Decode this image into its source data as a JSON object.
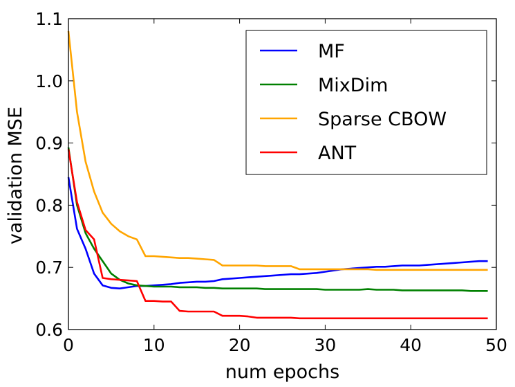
{
  "chart_data": {
    "type": "line",
    "title": "",
    "xlabel": "num epochs",
    "ylabel": "validation MSE",
    "xlim": [
      0,
      50
    ],
    "ylim": [
      0.6,
      1.1
    ],
    "xticks": [
      "0",
      "10",
      "20",
      "30",
      "40",
      "50"
    ],
    "yticks": [
      "0.6",
      "0.7",
      "0.8",
      "0.9",
      "1.0",
      "1.1"
    ],
    "grid": false,
    "legend_position": "top-right",
    "x": [
      0,
      1,
      2,
      3,
      4,
      5,
      6,
      7,
      8,
      9,
      10,
      11,
      12,
      13,
      14,
      15,
      16,
      17,
      18,
      19,
      20,
      21,
      22,
      23,
      24,
      25,
      26,
      27,
      28,
      29,
      30,
      31,
      32,
      33,
      34,
      35,
      36,
      37,
      38,
      39,
      40,
      41,
      42,
      43,
      44,
      45,
      46,
      47,
      48,
      49
    ],
    "series": [
      {
        "name": "MF",
        "color": "#0000ff",
        "values": [
          0.845,
          0.762,
          0.73,
          0.69,
          0.671,
          0.667,
          0.666,
          0.668,
          0.67,
          0.67,
          0.671,
          0.672,
          0.673,
          0.675,
          0.676,
          0.677,
          0.677,
          0.678,
          0.681,
          0.682,
          0.683,
          0.684,
          0.685,
          0.686,
          0.687,
          0.688,
          0.689,
          0.689,
          0.69,
          0.691,
          0.693,
          0.695,
          0.697,
          0.698,
          0.699,
          0.7,
          0.701,
          0.701,
          0.702,
          0.703,
          0.703,
          0.703,
          0.704,
          0.705,
          0.706,
          0.707,
          0.708,
          0.709,
          0.71,
          0.71
        ]
      },
      {
        "name": "MixDim",
        "color": "#008000",
        "values": [
          0.893,
          0.8,
          0.755,
          0.73,
          0.71,
          0.69,
          0.68,
          0.674,
          0.671,
          0.67,
          0.669,
          0.669,
          0.669,
          0.668,
          0.668,
          0.668,
          0.667,
          0.667,
          0.666,
          0.666,
          0.666,
          0.666,
          0.666,
          0.665,
          0.665,
          0.665,
          0.665,
          0.665,
          0.665,
          0.665,
          0.664,
          0.664,
          0.664,
          0.664,
          0.664,
          0.665,
          0.664,
          0.664,
          0.664,
          0.663,
          0.663,
          0.663,
          0.663,
          0.663,
          0.663,
          0.663,
          0.663,
          0.662,
          0.662,
          0.662
        ]
      },
      {
        "name": "Sparse CBOW",
        "color": "#ffa500",
        "values": [
          1.08,
          0.95,
          0.87,
          0.822,
          0.788,
          0.77,
          0.758,
          0.75,
          0.745,
          0.718,
          0.718,
          0.717,
          0.716,
          0.715,
          0.715,
          0.714,
          0.713,
          0.712,
          0.703,
          0.703,
          0.703,
          0.703,
          0.703,
          0.702,
          0.702,
          0.702,
          0.702,
          0.697,
          0.697,
          0.697,
          0.697,
          0.697,
          0.697,
          0.697,
          0.697,
          0.697,
          0.696,
          0.696,
          0.696,
          0.696,
          0.696,
          0.696,
          0.696,
          0.696,
          0.696,
          0.696,
          0.696,
          0.696,
          0.696,
          0.696
        ]
      },
      {
        "name": "ANT",
        "color": "#ff0000",
        "values": [
          0.89,
          0.805,
          0.76,
          0.745,
          0.683,
          0.681,
          0.68,
          0.679,
          0.678,
          0.646,
          0.646,
          0.645,
          0.645,
          0.63,
          0.629,
          0.629,
          0.629,
          0.629,
          0.622,
          0.622,
          0.622,
          0.621,
          0.619,
          0.619,
          0.619,
          0.619,
          0.619,
          0.618,
          0.618,
          0.618,
          0.618,
          0.618,
          0.618,
          0.618,
          0.618,
          0.618,
          0.618,
          0.618,
          0.618,
          0.618,
          0.618,
          0.618,
          0.618,
          0.618,
          0.618,
          0.618,
          0.618,
          0.618,
          0.618,
          0.618
        ]
      }
    ]
  }
}
